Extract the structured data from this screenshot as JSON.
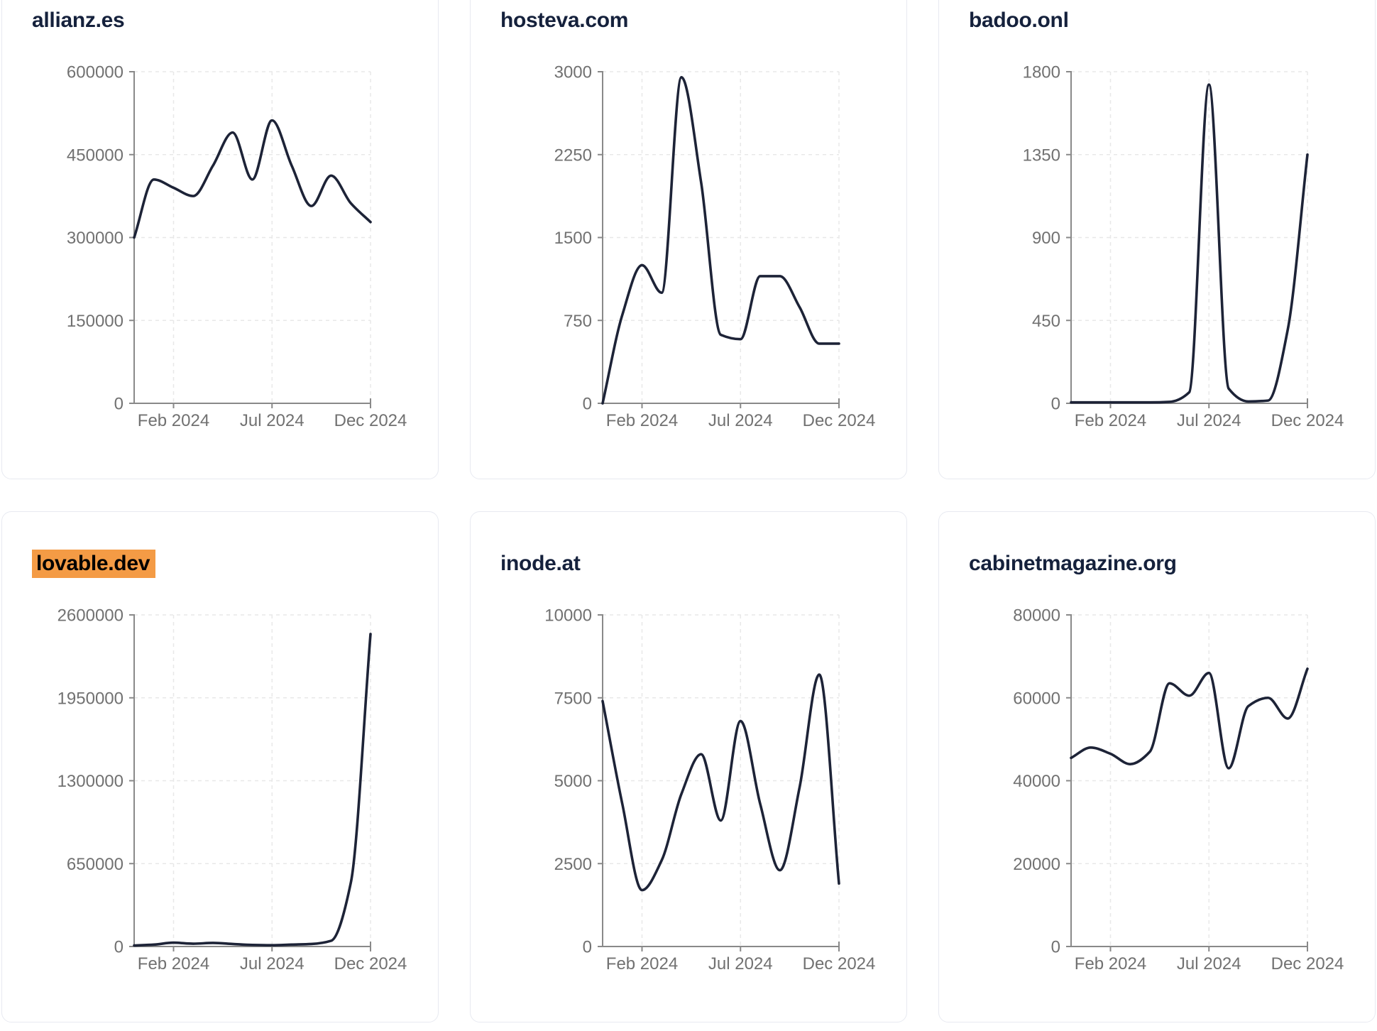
{
  "page": {
    "background": "#ffffff",
    "x_axis_tick_labels": [
      "Feb 2024",
      "Jul 2024",
      "Dec 2024"
    ]
  },
  "colors": {
    "line": "#1d2337",
    "title": "#15213c",
    "tick_text": "#717171",
    "axis": "#898989",
    "grid": "#e8e8e8",
    "card_border": "#e8eaf1",
    "card_background": "#ffffff",
    "title_highlight": "#f49b45"
  },
  "chart_data": [
    {
      "type": "line",
      "title": "allianz.es",
      "title_highlighted": false,
      "x": [
        "Dec 2023",
        "Jan 2024",
        "Feb 2024",
        "Mar 2024",
        "Apr 2024",
        "May 2024",
        "Jun 2024",
        "Jul 2024",
        "Aug 2024",
        "Sep 2024",
        "Oct 2024",
        "Nov 2024",
        "Dec 2024"
      ],
      "values": [
        300000,
        405000,
        390000,
        375000,
        430000,
        490000,
        405000,
        512000,
        430000,
        357000,
        412000,
        362000,
        328000
      ],
      "ylim": [
        0,
        600000
      ],
      "y_ticks": [
        0,
        150000,
        300000,
        450000,
        600000
      ],
      "x_ticks": [
        {
          "index": 2,
          "label": "Feb 2024"
        },
        {
          "index": 7,
          "label": "Jul 2024"
        },
        {
          "index": 12,
          "label": "Dec 2024"
        }
      ],
      "grid": true,
      "legend": "none"
    },
    {
      "type": "line",
      "title": "hosteva.com",
      "title_highlighted": false,
      "x": [
        "Dec 2023",
        "Jan 2024",
        "Feb 2024",
        "Mar 2024",
        "Apr 2024",
        "May 2024",
        "Jun 2024",
        "Jul 2024",
        "Aug 2024",
        "Sep 2024",
        "Oct 2024",
        "Nov 2024",
        "Dec 2024"
      ],
      "values": [
        0,
        800,
        1250,
        1000,
        2950,
        2000,
        620,
        580,
        1150,
        1150,
        870,
        540,
        540
      ],
      "ylim": [
        0,
        3000
      ],
      "y_ticks": [
        0,
        750,
        1500,
        2250,
        3000
      ],
      "x_ticks": [
        {
          "index": 2,
          "label": "Feb 2024"
        },
        {
          "index": 7,
          "label": "Jul 2024"
        },
        {
          "index": 12,
          "label": "Dec 2024"
        }
      ],
      "grid": true,
      "legend": "none"
    },
    {
      "type": "line",
      "title": "badoo.onl",
      "title_highlighted": false,
      "x": [
        "Dec 2023",
        "Jan 2024",
        "Feb 2024",
        "Mar 2024",
        "Apr 2024",
        "May 2024",
        "Jun 2024",
        "Jul 2024",
        "Aug 2024",
        "Sep 2024",
        "Oct 2024",
        "Nov 2024",
        "Dec 2024"
      ],
      "values": [
        5,
        5,
        5,
        5,
        5,
        8,
        60,
        1730,
        80,
        10,
        15,
        400,
        1350
      ],
      "ylim": [
        0,
        1800
      ],
      "y_ticks": [
        0,
        450,
        900,
        1350,
        1800
      ],
      "x_ticks": [
        {
          "index": 2,
          "label": "Feb 2024"
        },
        {
          "index": 7,
          "label": "Jul 2024"
        },
        {
          "index": 12,
          "label": "Dec 2024"
        }
      ],
      "grid": true,
      "legend": "none"
    },
    {
      "type": "line",
      "title": "lovable.dev",
      "title_highlighted": true,
      "x": [
        "Dec 2023",
        "Jan 2024",
        "Feb 2024",
        "Mar 2024",
        "Apr 2024",
        "May 2024",
        "Jun 2024",
        "Jul 2024",
        "Aug 2024",
        "Sep 2024",
        "Oct 2024",
        "Nov 2024",
        "Dec 2024"
      ],
      "values": [
        8000,
        15000,
        30000,
        22000,
        28000,
        20000,
        12000,
        10000,
        15000,
        20000,
        45000,
        500000,
        2450000
      ],
      "ylim": [
        0,
        2600000
      ],
      "y_ticks": [
        0,
        650000,
        1300000,
        1950000,
        2600000
      ],
      "x_ticks": [
        {
          "index": 2,
          "label": "Feb 2024"
        },
        {
          "index": 7,
          "label": "Jul 2024"
        },
        {
          "index": 12,
          "label": "Dec 2024"
        }
      ],
      "grid": true,
      "legend": "none"
    },
    {
      "type": "line",
      "title": "inode.at",
      "title_highlighted": false,
      "x": [
        "Dec 2023",
        "Jan 2024",
        "Feb 2024",
        "Mar 2024",
        "Apr 2024",
        "May 2024",
        "Jun 2024",
        "Jul 2024",
        "Aug 2024",
        "Sep 2024",
        "Oct 2024",
        "Nov 2024",
        "Dec 2024"
      ],
      "values": [
        7400,
        4300,
        1700,
        2600,
        4600,
        5800,
        3800,
        6800,
        4300,
        2300,
        4800,
        8200,
        1900
      ],
      "ylim": [
        0,
        10000
      ],
      "y_ticks": [
        0,
        2500,
        5000,
        7500,
        10000
      ],
      "x_ticks": [
        {
          "index": 2,
          "label": "Feb 2024"
        },
        {
          "index": 7,
          "label": "Jul 2024"
        },
        {
          "index": 12,
          "label": "Dec 2024"
        }
      ],
      "grid": true,
      "legend": "none"
    },
    {
      "type": "line",
      "title": "cabinetmagazine.org",
      "title_highlighted": false,
      "x": [
        "Dec 2023",
        "Jan 2024",
        "Feb 2024",
        "Mar 2024",
        "Apr 2024",
        "May 2024",
        "Jun 2024",
        "Jul 2024",
        "Aug 2024",
        "Sep 2024",
        "Oct 2024",
        "Nov 2024",
        "Dec 2024"
      ],
      "values": [
        45500,
        48000,
        46500,
        44000,
        47000,
        63500,
        60500,
        66000,
        43000,
        58000,
        60000,
        55000,
        67000
      ],
      "ylim": [
        0,
        80000
      ],
      "y_ticks": [
        0,
        20000,
        40000,
        60000,
        80000
      ],
      "x_ticks": [
        {
          "index": 2,
          "label": "Feb 2024"
        },
        {
          "index": 7,
          "label": "Jul 2024"
        },
        {
          "index": 12,
          "label": "Dec 2024"
        }
      ],
      "grid": true,
      "legend": "none"
    }
  ]
}
